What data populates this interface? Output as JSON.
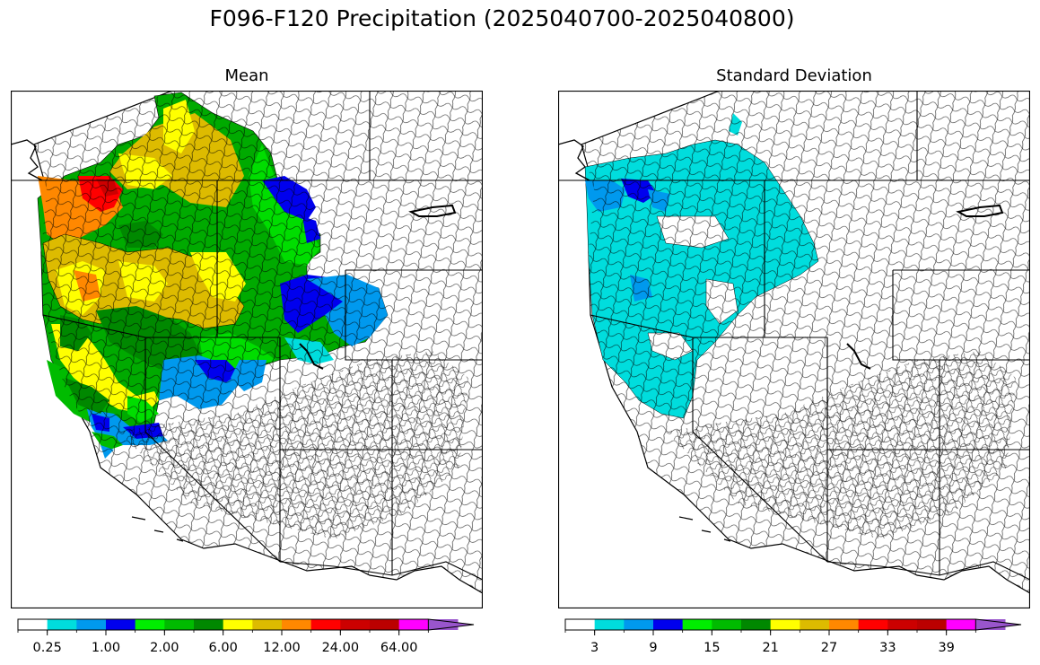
{
  "figure": {
    "title": "F096-F120 Precipitation (2025040700-2025040800)"
  },
  "panels": [
    {
      "title": "Mean",
      "colorbar": {
        "colors": [
          "#ffffff",
          "#00dddd",
          "#0099ee",
          "#0000ee",
          "#00ee00",
          "#00bb00",
          "#008800",
          "#ffff00",
          "#ddbb00",
          "#ff8800",
          "#ff0000",
          "#cc0000",
          "#bb0000",
          "#ff00ff",
          "#9955cc"
        ],
        "tick_labels": [
          "0.25",
          "1.00",
          "2.00",
          "6.00",
          "12.00",
          "24.00",
          "64.00"
        ],
        "extend": "max"
      }
    },
    {
      "title": "Standard Deviation",
      "colorbar": {
        "colors": [
          "#ffffff",
          "#00dddd",
          "#0099ee",
          "#0000ee",
          "#00ee00",
          "#00bb00",
          "#008800",
          "#ffff00",
          "#ddbb00",
          "#ff8800",
          "#ff0000",
          "#cc0000",
          "#bb0000",
          "#ff00ff",
          "#9955cc"
        ],
        "tick_labels": [
          "3",
          "9",
          "15",
          "21",
          "27",
          "33",
          "39"
        ],
        "extend": "max"
      }
    }
  ]
}
